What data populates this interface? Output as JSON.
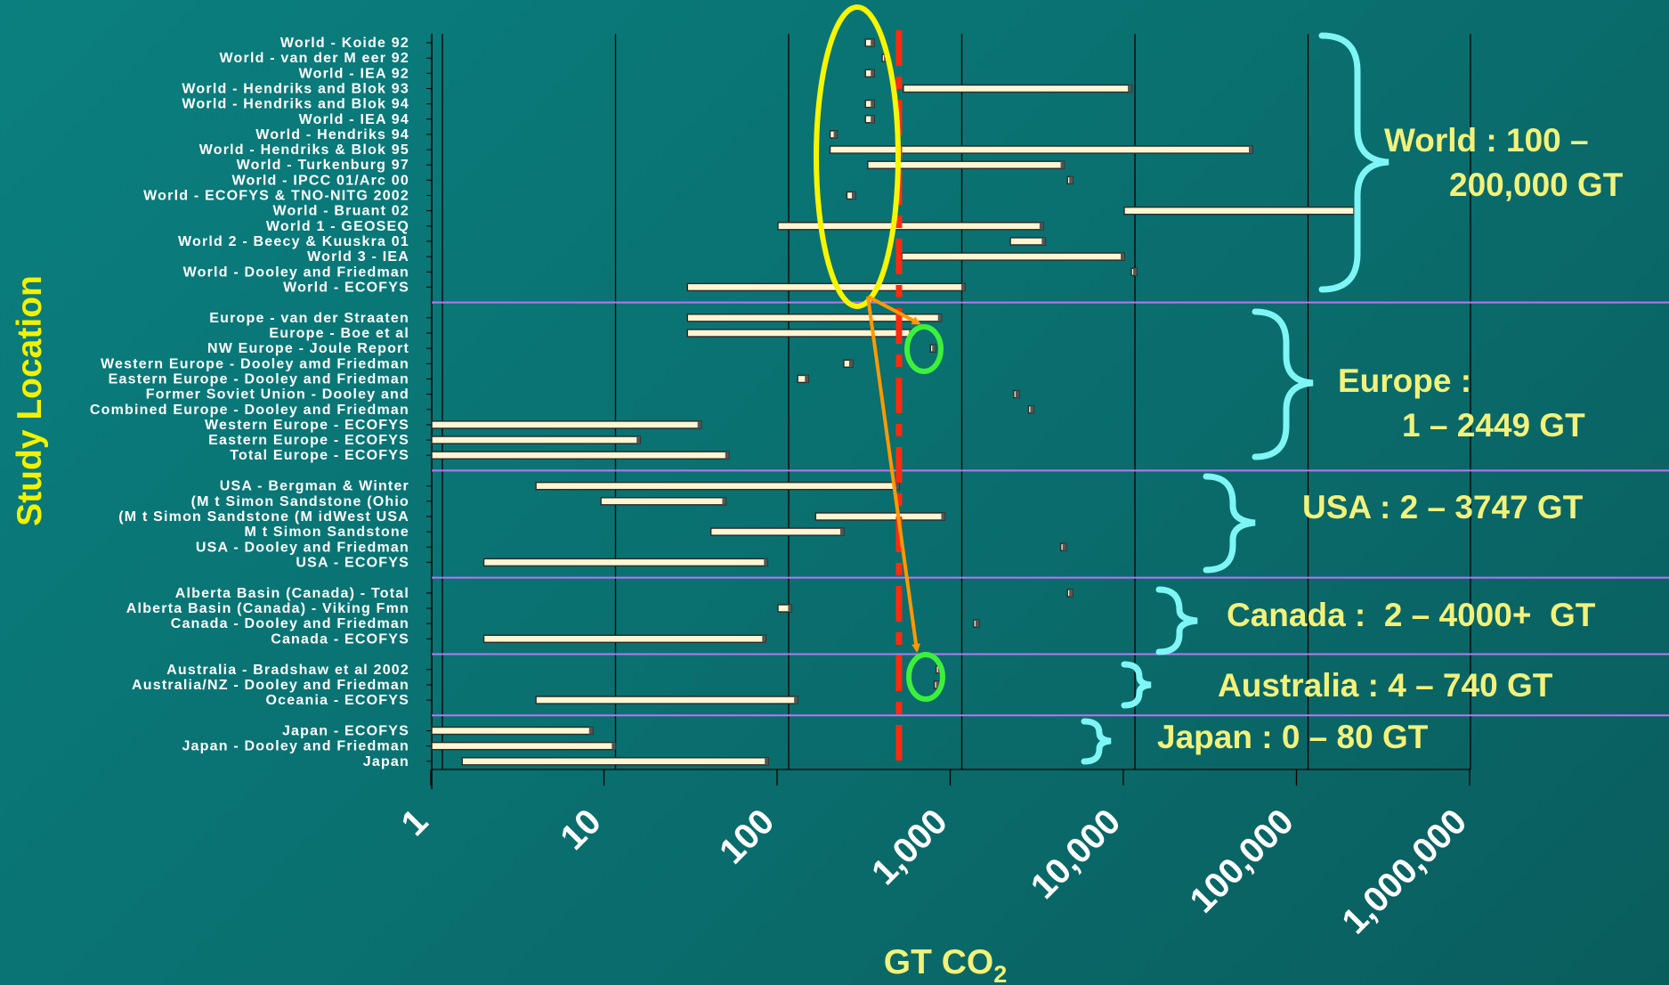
{
  "chart_data": {
    "type": "bar",
    "orientation": "horizontal",
    "x_scale": "log",
    "xlim": [
      1,
      1000000
    ],
    "xlabel": "GT CO2",
    "ylabel": "Study Location",
    "x_tick_labels": [
      "1",
      "10",
      "100",
      "1,000",
      "10,000",
      "100,000",
      "1,000,000"
    ],
    "x_ticks": [
      1,
      10,
      100,
      1000,
      10000,
      100000,
      1000000
    ],
    "reference_line": 500,
    "rows": [
      {
        "label": "World - Koide 92",
        "min": 320,
        "max": 360
      },
      {
        "label": "World - van der M eer 92",
        "min": 400,
        "max": 420
      },
      {
        "label": "World - IEA 92",
        "min": 320,
        "max": 360
      },
      {
        "label": "World - Hendriks and Blok 93",
        "min": 530,
        "max": 11000
      },
      {
        "label": "World - Hendriks and Blok 94",
        "min": 320,
        "max": 360
      },
      {
        "label": "World - IEA 94",
        "min": 320,
        "max": 360
      },
      {
        "label": "World - Hendriks 94",
        "min": 200,
        "max": 220
      },
      {
        "label": "World - Hendriks & Blok 95",
        "min": 200,
        "max": 55000
      },
      {
        "label": "World - Turkenburg 97",
        "min": 330,
        "max": 4500
      },
      {
        "label": "World - IPCC 01/Arc 00",
        "min": 4700,
        "max": 5000
      },
      {
        "label": "World - ECOFYS & TNO-NITG 2002",
        "min": 250,
        "max": 280
      },
      {
        "label": "World - Bruant 02",
        "min": 10000,
        "max": 220000
      },
      {
        "label": "World 1 - GEOSEQ",
        "min": 100,
        "max": 3400
      },
      {
        "label": "World 2 - Beecy & Kuuskra 01",
        "min": 2200,
        "max": 3500
      },
      {
        "label": "World 3 - IEA",
        "min": 520,
        "max": 10000
      },
      {
        "label": "World - Dooley and Friedman",
        "min": 11000,
        "max": 11500
      },
      {
        "label": "World - ECOFYS",
        "min": 30,
        "max": 1200
      },
      {
        "label": "Europe - van der Straaten",
        "min": 30,
        "max": 880
      },
      {
        "label": "Europe - Boe et al",
        "min": 30,
        "max": 600
      },
      {
        "label": "NW Europe - Joule Report",
        "min": 760,
        "max": 800
      },
      {
        "label": "Western Europe - Dooley amd Friedman",
        "min": 240,
        "max": 270
      },
      {
        "label": "Eastern Europe - Dooley and Friedman",
        "min": 130,
        "max": 150
      },
      {
        "label": "Former Soviet Union - Dooley and",
        "min": 2300,
        "max": 2450
      },
      {
        "label": "Combined Europe - Dooley and Friedman",
        "min": 2800,
        "max": 2950
      },
      {
        "label": "Western Europe - ECOFYS",
        "min": 1,
        "max": 36
      },
      {
        "label": "Eastern Europe - ECOFYS",
        "min": 1,
        "max": 16
      },
      {
        "label": "Total Europe - ECOFYS",
        "min": 1,
        "max": 52
      },
      {
        "label": "USA - Bergman & Winter",
        "min": 4,
        "max": 500
      },
      {
        "label": "(M t Simon Sandstone (Ohio",
        "min": 9.5,
        "max": 50
      },
      {
        "label": "(M t Simon Sandstone (M idWest USA",
        "min": 165,
        "max": 920
      },
      {
        "label": "M t Simon Sandstone",
        "min": 41,
        "max": 240
      },
      {
        "label": "USA - Dooley and Friedman",
        "min": 4300,
        "max": 4550
      },
      {
        "label": "USA - ECOFYS",
        "min": 2,
        "max": 87
      },
      {
        "label": "Alberta Basin (Canada) - Total",
        "min": 4700,
        "max": 5000
      },
      {
        "label": "Alberta Basin (Canada) - Viking Fmn",
        "min": 100,
        "max": 120
      },
      {
        "label": "Canada - Dooley and Friedman",
        "min": 1350,
        "max": 1450
      },
      {
        "label": "Canada - ECOFYS",
        "min": 2,
        "max": 85
      },
      {
        "label": "Australia - Bradshaw et al 2002",
        "min": 820,
        "max": 880
      },
      {
        "label": "Australia/NZ - Dooley and Friedman",
        "min": 800,
        "max": 850
      },
      {
        "label": "Oceania - ECOFYS",
        "min": 4,
        "max": 130
      },
      {
        "label": "Japan - ECOFYS",
        "min": 1,
        "max": 8.5
      },
      {
        "label": "Japan - Dooley and Friedman",
        "min": 1,
        "max": 11.5
      },
      {
        "label": "Japan",
        "min": 1.5,
        "max": 88
      }
    ],
    "groups": [
      {
        "name": "World",
        "annotation": [
          "World : 100 –",
          "200,000 GT"
        ]
      },
      {
        "name": "Europe",
        "annotation": [
          "Europe :",
          "1 – 2449 GT"
        ]
      },
      {
        "name": "USA",
        "annotation": [
          "USA : 2 – 3747 GT"
        ]
      },
      {
        "name": "Canada",
        "annotation": [
          "Canada :  2 – 4000+  GT"
        ]
      },
      {
        "name": "Australia",
        "annotation": [
          "Australia : 4 – 740 GT"
        ]
      },
      {
        "name": "Japan",
        "annotation": [
          "Japan : 0 – 80 GT"
        ]
      }
    ],
    "colors": {
      "bar_fill": "#fdf6d2",
      "bar_edge": "#2a2a2a",
      "axis_text": "#ffffff",
      "annotation_text": "#f2f27a",
      "ylabel_text": "#f2f200",
      "brace": "#7ff6f6",
      "divider": "#c070ff",
      "reference_line": "#ff2a10",
      "ellipse": "#f6f600",
      "circle": "#3cf03c",
      "arrow": "#ff9900",
      "gridline": "#000000"
    }
  }
}
